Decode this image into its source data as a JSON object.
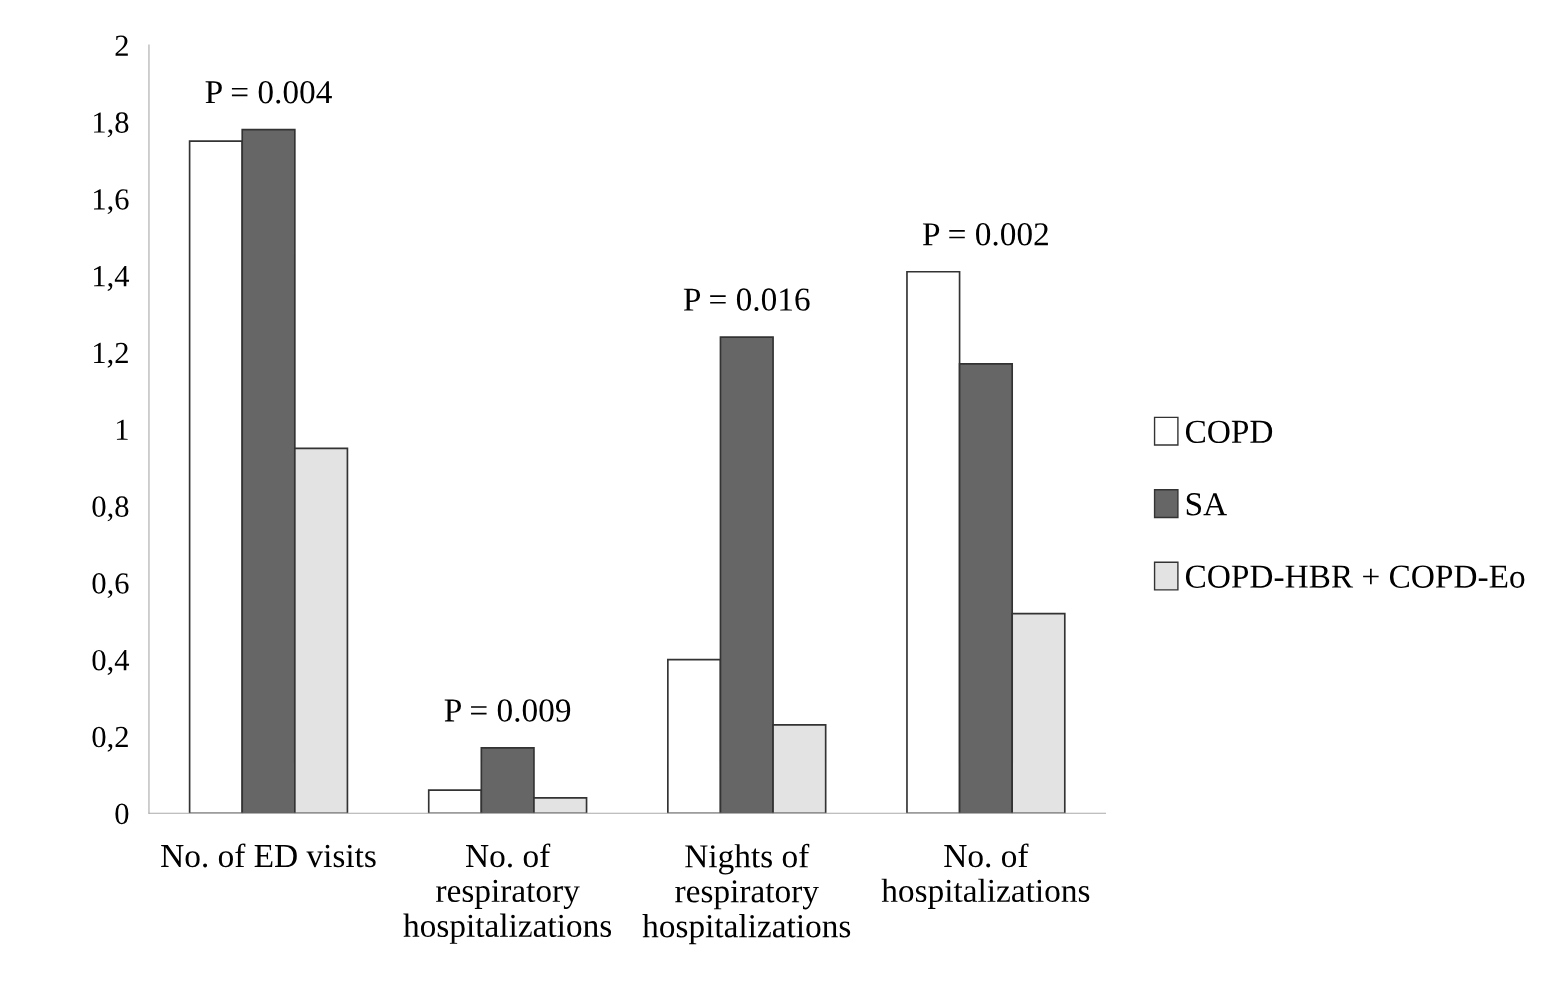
{
  "chart_data": {
    "type": "bar",
    "categories": [
      "No. of ED visits",
      "No. of\nrespiratory\nhospitalizations",
      "Nights of\nrespiratory\nhospitalizations",
      "No. of\nhospitalizations"
    ],
    "series": [
      {
        "name": "COPD",
        "color": "#ffffff",
        "values": [
          1.75,
          0.06,
          0.4,
          1.41
        ]
      },
      {
        "name": "SA",
        "color": "#666666",
        "values": [
          1.78,
          0.17,
          1.24,
          1.17
        ]
      },
      {
        "name": "COPD-HBR + COPD-Eo",
        "color": "#e3e3e3",
        "values": [
          0.95,
          0.04,
          0.23,
          0.52
        ]
      }
    ],
    "ylim": [
      0,
      2
    ],
    "yticks": [
      0,
      {
        "value": 0.2,
        "label": "0,2"
      },
      {
        "value": 0.4,
        "label": "0,4"
      },
      {
        "value": 0.6,
        "label": "0,6"
      },
      {
        "value": 0.8,
        "label": "0,8"
      },
      1,
      {
        "value": 1.2,
        "label": "1,2"
      },
      {
        "value": 1.4,
        "label": "1,4"
      },
      {
        "value": 1.6,
        "label": "1,6"
      },
      {
        "value": 1.8,
        "label": "1,8"
      },
      2
    ],
    "annotations": [
      "P = 0.004",
      "P = 0.009",
      "P = 0.016",
      "P = 0.002"
    ],
    "grid": false,
    "legend": "right"
  }
}
